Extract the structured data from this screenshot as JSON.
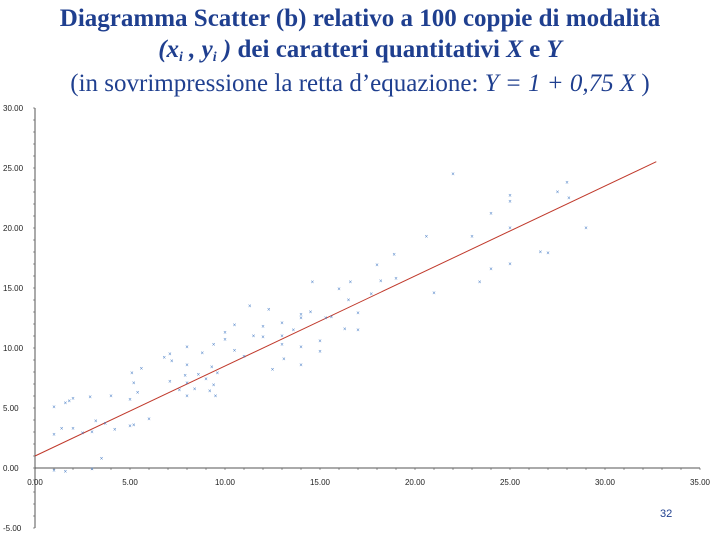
{
  "slide": {
    "title_line1": "Diagramma Scatter (b) relativo a 100 coppie di modalità",
    "title_line2": {
      "open": "(x",
      "sub_i": "i",
      "sep": " , y",
      "sub_i2": "i",
      "close": " )",
      "text": " dei caratteri quantitativi ",
      "X": "X",
      "and": " e ",
      "Y": "Y"
    },
    "title_line3": {
      "prefix": "(in sovrimpressione la retta d’equazione: ",
      "equation": "Y = 1 + 0,75 X",
      "suffix": " )"
    },
    "page_number": "32"
  },
  "colors": {
    "points": "#4a7fc6",
    "line": "#c0392b",
    "title": "#1f3f8f",
    "axis": "#555555"
  },
  "chart_data": {
    "type": "scatter",
    "title": "Diagramma Scatter (b) relativo a 100 coppie di modalità",
    "xlim": [
      0,
      35
    ],
    "ylim": [
      -5,
      30
    ],
    "x_ticks": [
      "0.00",
      "5.00",
      "10.00",
      "15.00",
      "20.00",
      "25.00",
      "30.00",
      "35.00"
    ],
    "y_ticks": [
      "-5.00",
      "0.00",
      "5.00",
      "10.00",
      "15.00",
      "20.00",
      "25.00",
      "30.00"
    ],
    "x_tick_values": [
      0,
      5,
      10,
      15,
      20,
      25,
      30,
      35
    ],
    "y_tick_values": [
      -5,
      0,
      5,
      10,
      15,
      20,
      25,
      30
    ],
    "grid": false,
    "line": {
      "intercept": 1,
      "slope": 0.75,
      "x_range": [
        0,
        32.7
      ],
      "label": "Y = 1 + 0,75 X"
    },
    "marker": "x",
    "points": [
      [
        1.0,
        -0.2
      ],
      [
        1.6,
        -0.3
      ],
      [
        3.0,
        -0.1
      ],
      [
        3.5,
        0.8
      ],
      [
        1.0,
        2.8
      ],
      [
        1.4,
        3.3
      ],
      [
        2.0,
        3.3
      ],
      [
        2.5,
        2.9
      ],
      [
        3.0,
        3.0
      ],
      [
        3.2,
        3.9
      ],
      [
        3.7,
        3.7
      ],
      [
        4.2,
        3.2
      ],
      [
        5.0,
        3.5
      ],
      [
        5.2,
        3.6
      ],
      [
        6.0,
        4.1
      ],
      [
        1.0,
        5.1
      ],
      [
        1.6,
        5.4
      ],
      [
        1.8,
        5.6
      ],
      [
        2.0,
        5.8
      ],
      [
        2.9,
        5.9
      ],
      [
        4.0,
        6.0
      ],
      [
        5.0,
        5.7
      ],
      [
        5.4,
        6.3
      ],
      [
        5.2,
        7.1
      ],
      [
        5.1,
        7.9
      ],
      [
        5.6,
        8.3
      ],
      [
        6.8,
        9.2
      ],
      [
        7.1,
        9.5
      ],
      [
        7.2,
        8.9
      ],
      [
        7.9,
        7.7
      ],
      [
        8.0,
        7.1
      ],
      [
        8.6,
        7.8
      ],
      [
        7.6,
        6.5
      ],
      [
        8.0,
        6.0
      ],
      [
        8.4,
        6.6
      ],
      [
        9.2,
        6.4
      ],
      [
        9.5,
        6.0
      ],
      [
        9.4,
        6.9
      ],
      [
        9.0,
        7.4
      ],
      [
        9.6,
        7.9
      ],
      [
        9.3,
        8.4
      ],
      [
        8.8,
        9.6
      ],
      [
        8.0,
        8.6
      ],
      [
        7.1,
        7.2
      ],
      [
        8.0,
        10.1
      ],
      [
        9.4,
        10.3
      ],
      [
        10.5,
        9.8
      ],
      [
        11.0,
        9.3
      ],
      [
        10.0,
        10.7
      ],
      [
        10.0,
        11.3
      ],
      [
        10.5,
        11.9
      ],
      [
        11.5,
        11.0
      ],
      [
        12.0,
        10.9
      ],
      [
        12.0,
        11.8
      ],
      [
        12.3,
        13.2
      ],
      [
        13.0,
        12.1
      ],
      [
        13.0,
        11.0
      ],
      [
        13.0,
        10.3
      ],
      [
        13.1,
        9.1
      ],
      [
        12.5,
        8.2
      ],
      [
        13.6,
        11.5
      ],
      [
        14.0,
        12.5
      ],
      [
        14.5,
        13.0
      ],
      [
        14.0,
        10.1
      ],
      [
        14.0,
        8.6
      ],
      [
        15.0,
        9.7
      ],
      [
        15.0,
        10.6
      ],
      [
        14.0,
        12.8
      ],
      [
        15.3,
        12.5
      ],
      [
        15.6,
        12.6
      ],
      [
        16.5,
        14.0
      ],
      [
        17.0,
        12.9
      ],
      [
        17.0,
        11.5
      ],
      [
        16.3,
        11.6
      ],
      [
        16.0,
        14.9
      ],
      [
        16.6,
        15.5
      ],
      [
        17.7,
        14.5
      ],
      [
        18.2,
        15.6
      ],
      [
        18.0,
        16.9
      ],
      [
        18.9,
        17.8
      ],
      [
        19.0,
        15.8
      ],
      [
        21.0,
        14.6
      ],
      [
        20.6,
        19.3
      ],
      [
        23.0,
        19.3
      ],
      [
        23.4,
        15.5
      ],
      [
        24.0,
        16.6
      ],
      [
        25.0,
        17.0
      ],
      [
        25.0,
        20.0
      ],
      [
        25.0,
        22.2
      ],
      [
        24.0,
        21.2
      ],
      [
        26.6,
        18.0
      ],
      [
        27.0,
        17.9
      ],
      [
        27.5,
        23.0
      ],
      [
        28.0,
        23.8
      ],
      [
        28.1,
        22.5
      ],
      [
        29.0,
        20.0
      ],
      [
        25.0,
        22.7
      ],
      [
        22.0,
        24.5
      ],
      [
        11.3,
        13.5
      ],
      [
        14.6,
        15.5
      ]
    ]
  }
}
